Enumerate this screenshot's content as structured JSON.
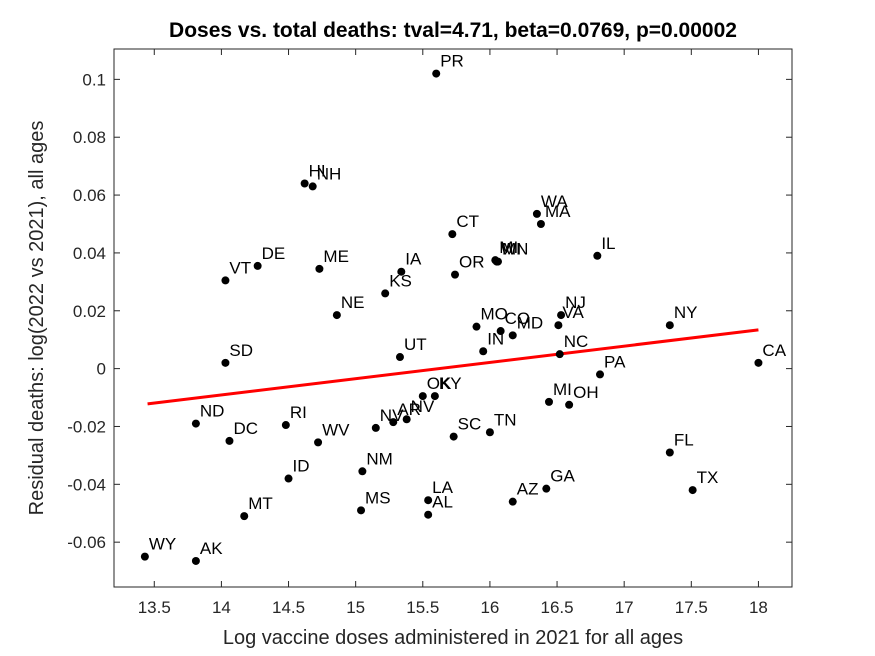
{
  "chart_data": {
    "type": "scatter",
    "title": "Doses vs. total deaths: tval=4.71, beta=0.0769, p=0.00002",
    "xlabel": "Log vaccine doses administered in 2021 for all ages",
    "ylabel": "Residual deaths: log(2022 vs 2021), all ages",
    "xlim": [
      13.2,
      18.25
    ],
    "ylim": [
      -0.0755,
      0.1105
    ],
    "xticks": [
      13.5,
      14,
      14.5,
      15,
      15.5,
      16,
      16.5,
      17,
      17.5,
      18
    ],
    "yticks": [
      -0.06,
      -0.04,
      -0.02,
      0,
      0.02,
      0.04,
      0.06,
      0.08,
      0.1
    ],
    "xtick_labels": [
      "13.5",
      "14",
      "14.5",
      "15",
      "15.5",
      "16",
      "16.5",
      "17",
      "17.5",
      "18"
    ],
    "ytick_labels": [
      "-0.06",
      "-0.04",
      "-0.02",
      "0",
      "0.02",
      "0.04",
      "0.06",
      "0.08",
      "0.1"
    ],
    "grid": false,
    "marker_color": "#000000",
    "fit_line": {
      "color": "#ff0000",
      "x": [
        13.45,
        18.0
      ],
      "y": [
        -0.0122,
        0.0134
      ]
    },
    "points": [
      {
        "label": "PR",
        "x": 15.6,
        "y": 0.102
      },
      {
        "label": "HI",
        "x": 14.62,
        "y": 0.064
      },
      {
        "label": "NH",
        "x": 14.68,
        "y": 0.063
      },
      {
        "label": "WA",
        "x": 16.35,
        "y": 0.0535
      },
      {
        "label": "MA",
        "x": 16.38,
        "y": 0.05
      },
      {
        "label": "CT",
        "x": 15.72,
        "y": 0.0465
      },
      {
        "label": "IL",
        "x": 16.8,
        "y": 0.039
      },
      {
        "label": "MI",
        "x": 16.04,
        "y": 0.0375
      },
      {
        "label": "WI",
        "x": 16.05,
        "y": 0.037
      },
      {
        "label": "MN",
        "x": 16.06,
        "y": 0.037
      },
      {
        "label": "OR",
        "x": 15.74,
        "y": 0.0325
      },
      {
        "label": "IA",
        "x": 15.34,
        "y": 0.0335
      },
      {
        "label": "ME",
        "x": 14.73,
        "y": 0.0345
      },
      {
        "label": "DE",
        "x": 14.27,
        "y": 0.0355
      },
      {
        "label": "VT",
        "x": 14.03,
        "y": 0.0305
      },
      {
        "label": "KS",
        "x": 15.22,
        "y": 0.026
      },
      {
        "label": "NE",
        "x": 14.86,
        "y": 0.0185
      },
      {
        "label": "NJ",
        "x": 16.53,
        "y": 0.0185
      },
      {
        "label": "VA",
        "x": 16.51,
        "y": 0.015
      },
      {
        "label": "NY",
        "x": 17.34,
        "y": 0.015
      },
      {
        "label": "MO",
        "x": 15.9,
        "y": 0.0145
      },
      {
        "label": "CO",
        "x": 16.08,
        "y": 0.013
      },
      {
        "label": "MD",
        "x": 16.17,
        "y": 0.0115
      },
      {
        "label": "IN",
        "x": 15.95,
        "y": 0.006
      },
      {
        "label": "NC",
        "x": 16.52,
        "y": 0.005
      },
      {
        "label": "UT",
        "x": 15.33,
        "y": 0.004
      },
      {
        "label": "SD",
        "x": 14.03,
        "y": 0.002
      },
      {
        "label": "CA",
        "x": 18.0,
        "y": 0.002
      },
      {
        "label": "PA",
        "x": 16.82,
        "y": -0.002
      },
      {
        "label": "OK",
        "x": 15.5,
        "y": -0.0095
      },
      {
        "label": "KY",
        "x": 15.59,
        "y": -0.0095
      },
      {
        "label": "MI",
        "x": 16.44,
        "y": -0.0115
      },
      {
        "label": "OH",
        "x": 16.59,
        "y": -0.0125
      },
      {
        "label": "NV",
        "x": 15.38,
        "y": -0.0175
      },
      {
        "label": "AR",
        "x": 15.28,
        "y": -0.0185
      },
      {
        "label": "ND",
        "x": 13.81,
        "y": -0.019
      },
      {
        "label": "RI",
        "x": 14.48,
        "y": -0.0195
      },
      {
        "label": "WV",
        "x": 14.72,
        "y": -0.0255
      },
      {
        "label": "NV",
        "x": 15.15,
        "y": -0.0205
      },
      {
        "label": "SC",
        "x": 15.73,
        "y": -0.0235
      },
      {
        "label": "TN",
        "x": 16.0,
        "y": -0.022
      },
      {
        "label": "DC",
        "x": 14.06,
        "y": -0.025
      },
      {
        "label": "FL",
        "x": 17.34,
        "y": -0.029
      },
      {
        "label": "NM",
        "x": 15.05,
        "y": -0.0355
      },
      {
        "label": "ID",
        "x": 14.5,
        "y": -0.038
      },
      {
        "label": "GA",
        "x": 16.42,
        "y": -0.0415
      },
      {
        "label": "TX",
        "x": 17.51,
        "y": -0.042
      },
      {
        "label": "AZ",
        "x": 16.17,
        "y": -0.046
      },
      {
        "label": "LA",
        "x": 15.54,
        "y": -0.0455
      },
      {
        "label": "MS",
        "x": 15.04,
        "y": -0.049
      },
      {
        "label": "AL",
        "x": 15.54,
        "y": -0.0505
      },
      {
        "label": "MT",
        "x": 14.17,
        "y": -0.051
      },
      {
        "label": "WY",
        "x": 13.43,
        "y": -0.065
      },
      {
        "label": "AK",
        "x": 13.81,
        "y": -0.0665
      }
    ]
  }
}
